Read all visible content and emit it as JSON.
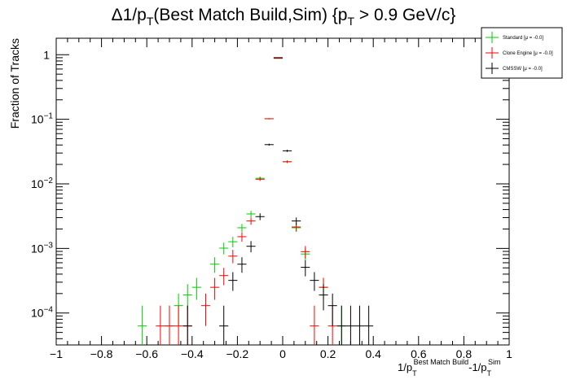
{
  "chart_data": {
    "type": "scatter",
    "title": {
      "prefix": "Δ1/p",
      "sub1": "T",
      "mid": "(Best Match Build,Sim) {p",
      "sub2": "T",
      "suffix": " > 0.9 GeV/c}"
    },
    "ylabel": "Fraction of Tracks",
    "xlabel": {
      "part1": "1/p",
      "sub1": "T",
      "sup1": "Best Match Build",
      "part2": "-1/p",
      "sub2": "T",
      "sup2": "Sim"
    },
    "x_range": [
      -1,
      1
    ],
    "y_range": [
      3.2e-05,
      1.8
    ],
    "y_scale": "log",
    "x_ticks": [
      "−1",
      "−0.8",
      "−0.6",
      "−0.4",
      "−0.2",
      "0",
      "0.2",
      "0.4",
      "0.6",
      "0.8",
      "1"
    ],
    "x_tick_values": [
      -1,
      -0.8,
      -0.6,
      -0.4,
      -0.2,
      0,
      0.2,
      0.4,
      0.6,
      0.8,
      1
    ],
    "y_tick_values": [
      0.0001,
      0.001,
      0.01,
      0.1,
      1
    ],
    "y_ticks": [
      {
        "base": "10",
        "exp": "−4"
      },
      {
        "base": "10",
        "exp": "−3"
      },
      {
        "base": "10",
        "exp": "−2"
      },
      {
        "base": "10",
        "exp": "−1"
      },
      {
        "base": "1",
        "exp": ""
      }
    ],
    "bin_half_width": 0.02,
    "legend_position": "top-right",
    "series": [
      {
        "name": "Standard",
        "mu_label": "[μ = -0.0]",
        "color": "#00cc00",
        "points": [
          {
            "x": -0.62,
            "y": 6.3e-05,
            "ylo": 3.2e-05,
            "yhi": 0.00013
          },
          {
            "x": -0.5,
            "y": 6.3e-05,
            "ylo": 3.2e-05,
            "yhi": 0.00013
          },
          {
            "x": -0.46,
            "y": 0.00013,
            "ylo": 6.3e-05,
            "yhi": 0.0002
          },
          {
            "x": -0.42,
            "y": 0.00019,
            "ylo": 0.00011,
            "yhi": 0.00028
          },
          {
            "x": -0.38,
            "y": 0.00025,
            "ylo": 0.00016,
            "yhi": 0.00035
          },
          {
            "x": -0.3,
            "y": 0.00057,
            "ylo": 0.00042,
            "yhi": 0.00073
          },
          {
            "x": -0.26,
            "y": 0.00101,
            "ylo": 0.00081,
            "yhi": 0.00123
          },
          {
            "x": -0.22,
            "y": 0.00127,
            "ylo": 0.00104,
            "yhi": 0.00151
          },
          {
            "x": -0.18,
            "y": 0.00209,
            "ylo": 0.0018,
            "yhi": 0.0024
          },
          {
            "x": -0.14,
            "y": 0.00342,
            "ylo": 0.00303,
            "yhi": 0.00382
          },
          {
            "x": -0.1,
            "y": 0.0122,
            "ylo": 0.0115,
            "yhi": 0.013
          },
          {
            "x": -0.06,
            "y": 0.102,
            "ylo": 0.1,
            "yhi": 0.104
          },
          {
            "x": -0.02,
            "y": 0.88,
            "ylo": 0.875,
            "yhi": 0.885
          },
          {
            "x": 0.02,
            "y": 0.022,
            "ylo": 0.021,
            "yhi": 0.023
          },
          {
            "x": 0.06,
            "y": 0.00209,
            "ylo": 0.0018,
            "yhi": 0.0024
          },
          {
            "x": 0.1,
            "y": 0.00082,
            "ylo": 0.00064,
            "yhi": 0.00101
          },
          {
            "x": 0.18,
            "y": 0.00025,
            "ylo": 0.00016,
            "yhi": 0.00035
          },
          {
            "x": 0.26,
            "y": 6.3e-05,
            "ylo": 3.2e-05,
            "yhi": 0.00013
          }
        ]
      },
      {
        "name": "Clone Engine",
        "mu_label": "[μ = -0.0]",
        "color": "#ff0000",
        "points": [
          {
            "x": -0.54,
            "y": 6.3e-05,
            "ylo": 3.2e-05,
            "yhi": 0.00013
          },
          {
            "x": -0.5,
            "y": 6.3e-05,
            "ylo": 3.2e-05,
            "yhi": 0.00013
          },
          {
            "x": -0.46,
            "y": 6.3e-05,
            "ylo": 3.2e-05,
            "yhi": 0.00013
          },
          {
            "x": -0.42,
            "y": 6.3e-05,
            "ylo": 3.2e-05,
            "yhi": 0.00013
          },
          {
            "x": -0.34,
            "y": 0.00013,
            "ylo": 6.3e-05,
            "yhi": 0.0002
          },
          {
            "x": -0.3,
            "y": 0.00025,
            "ylo": 0.00016,
            "yhi": 0.00035
          },
          {
            "x": -0.26,
            "y": 0.00038,
            "ylo": 0.00027,
            "yhi": 0.0005
          },
          {
            "x": -0.22,
            "y": 0.00076,
            "ylo": 0.00059,
            "yhi": 0.00095
          },
          {
            "x": -0.18,
            "y": 0.00152,
            "ylo": 0.00127,
            "yhi": 0.00178
          },
          {
            "x": -0.14,
            "y": 0.00266,
            "ylo": 0.00232,
            "yhi": 0.00301
          },
          {
            "x": -0.1,
            "y": 0.0118,
            "ylo": 0.0111,
            "yhi": 0.0126
          },
          {
            "x": -0.06,
            "y": 0.102,
            "ylo": 0.1,
            "yhi": 0.104
          },
          {
            "x": -0.02,
            "y": 0.88,
            "ylo": 0.875,
            "yhi": 0.885
          },
          {
            "x": 0.02,
            "y": 0.022,
            "ylo": 0.021,
            "yhi": 0.023
          },
          {
            "x": 0.06,
            "y": 0.00215,
            "ylo": 0.00185,
            "yhi": 0.00246
          },
          {
            "x": 0.1,
            "y": 0.00089,
            "ylo": 0.0007,
            "yhi": 0.00109
          },
          {
            "x": 0.14,
            "y": 6.3e-05,
            "ylo": 3.2e-05,
            "yhi": 0.00013
          },
          {
            "x": 0.18,
            "y": 0.00025,
            "ylo": 0.00016,
            "yhi": 0.00035
          },
          {
            "x": 0.22,
            "y": 6.3e-05,
            "ylo": 3.2e-05,
            "yhi": 0.00013
          }
        ]
      },
      {
        "name": "CMSSW",
        "mu_label": "[μ = -0.0]",
        "color": "#000000",
        "points": [
          {
            "x": -0.42,
            "y": 6.3e-05,
            "ylo": 3.2e-05,
            "yhi": 0.00013
          },
          {
            "x": -0.26,
            "y": 6.3e-05,
            "ylo": 3.2e-05,
            "yhi": 0.00013
          },
          {
            "x": -0.22,
            "y": 0.00032,
            "ylo": 0.00022,
            "yhi": 0.00043
          },
          {
            "x": -0.18,
            "y": 0.00057,
            "ylo": 0.00042,
            "yhi": 0.00073
          },
          {
            "x": -0.14,
            "y": 0.00108,
            "ylo": 0.00087,
            "yhi": 0.0013
          },
          {
            "x": -0.1,
            "y": 0.00311,
            "ylo": 0.00274,
            "yhi": 0.0035
          },
          {
            "x": -0.06,
            "y": 0.0405,
            "ylo": 0.0391,
            "yhi": 0.0419
          },
          {
            "x": -0.02,
            "y": 0.9,
            "ylo": 0.895,
            "yhi": 0.905
          },
          {
            "x": 0.02,
            "y": 0.0325,
            "ylo": 0.0312,
            "yhi": 0.0338
          },
          {
            "x": 0.06,
            "y": 0.00266,
            "ylo": 0.00232,
            "yhi": 0.00301
          },
          {
            "x": 0.1,
            "y": 0.00051,
            "ylo": 0.00037,
            "yhi": 0.00065
          },
          {
            "x": 0.14,
            "y": 0.00032,
            "ylo": 0.00022,
            "yhi": 0.00043
          },
          {
            "x": 0.18,
            "y": 0.00019,
            "ylo": 0.00011,
            "yhi": 0.00028
          },
          {
            "x": 0.22,
            "y": 0.00013,
            "ylo": 6.3e-05,
            "yhi": 0.0002
          },
          {
            "x": 0.26,
            "y": 6.3e-05,
            "ylo": 3.2e-05,
            "yhi": 0.00013
          },
          {
            "x": 0.3,
            "y": 6.3e-05,
            "ylo": 3.2e-05,
            "yhi": 0.00013
          },
          {
            "x": 0.34,
            "y": 6.3e-05,
            "ylo": 3.2e-05,
            "yhi": 0.00013
          },
          {
            "x": 0.38,
            "y": 6.3e-05,
            "ylo": 3.2e-05,
            "yhi": 0.00013
          }
        ]
      }
    ]
  }
}
